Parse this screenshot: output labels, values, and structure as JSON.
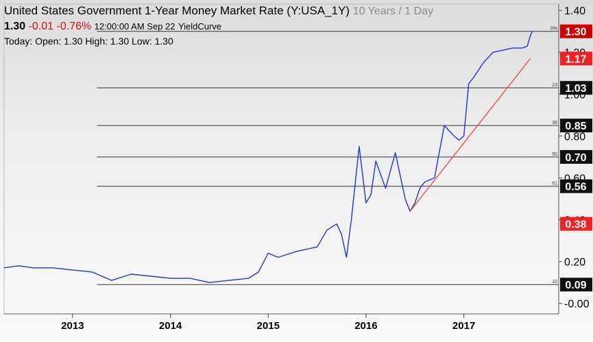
{
  "header": {
    "title": "United States Government 1-Year Money Market Rate (Y:USA_1Y)",
    "period": "10 Years / 1 Day",
    "last": "1.30",
    "change": "-0.01",
    "change_pct": "-0.76%",
    "timestamp": "12:00:00 AM Sep 22",
    "source": "YieldCurve",
    "today_label": "Today:",
    "open_label": "Open:",
    "open": "1.30",
    "high_label": "High:",
    "high": "1.30",
    "low_label": "Low:",
    "low": "1.30"
  },
  "chart_data": {
    "type": "line",
    "x_ticks": [
      2013,
      2014,
      2015,
      2016,
      2017
    ],
    "y_ticks": [
      "-0.00",
      "0.20",
      "0.40",
      "0.60",
      "0.80",
      "1.00",
      "1.20",
      "1.40"
    ],
    "xlim": [
      2012.3,
      2017.97
    ],
    "ylim": [
      -0.05,
      1.43
    ],
    "series": [
      {
        "color": "#2233cc",
        "x": [
          2012.3,
          2012.45,
          2012.6,
          2012.8,
          2013.0,
          2013.2,
          2013.4,
          2013.6,
          2013.8,
          2014.0,
          2014.2,
          2014.4,
          2014.6,
          2014.8,
          2014.9,
          2015.0,
          2015.1,
          2015.3,
          2015.5,
          2015.6,
          2015.7,
          2015.75,
          2015.8,
          2015.85,
          2015.93,
          2016.0,
          2016.05,
          2016.1,
          2016.2,
          2016.3,
          2016.4,
          2016.45,
          2016.5,
          2016.55,
          2016.6,
          2016.7,
          2016.8,
          2016.9,
          2016.95,
          2017.0,
          2017.05,
          2017.1,
          2017.2,
          2017.3,
          2017.4,
          2017.5,
          2017.6,
          2017.65,
          2017.68,
          2017.7
        ],
        "values": [
          0.17,
          0.18,
          0.17,
          0.17,
          0.16,
          0.15,
          0.11,
          0.14,
          0.13,
          0.12,
          0.12,
          0.1,
          0.11,
          0.12,
          0.15,
          0.24,
          0.22,
          0.25,
          0.27,
          0.35,
          0.38,
          0.33,
          0.22,
          0.4,
          0.75,
          0.48,
          0.52,
          0.68,
          0.55,
          0.72,
          0.5,
          0.44,
          0.48,
          0.55,
          0.58,
          0.6,
          0.85,
          0.8,
          0.78,
          0.8,
          1.05,
          1.08,
          1.15,
          1.2,
          1.21,
          1.22,
          1.22,
          1.23,
          1.28,
          1.3
        ]
      }
    ],
    "trendline": {
      "color": "#ee4444",
      "x": [
        2016.45,
        2017.68
      ],
      "y": [
        0.44,
        1.17
      ]
    },
    "fib_levels": [
      {
        "value": 1.3,
        "label": "1.30",
        "tag": "0%",
        "badge_color": "#cc0000"
      },
      {
        "value": 1.17,
        "label": "1.17",
        "tag": "",
        "badge_color": "#ee2222"
      },
      {
        "value": 1.03,
        "label": "1.03",
        "tag": "23",
        "badge_color": "#111111"
      },
      {
        "value": 0.85,
        "label": "0.85",
        "tag": "38",
        "badge_color": "#111111"
      },
      {
        "value": 0.7,
        "label": "0.70",
        "tag": "50",
        "badge_color": "#111111"
      },
      {
        "value": 0.56,
        "label": "0.56",
        "tag": "61",
        "badge_color": "#111111"
      },
      {
        "value": 0.38,
        "label": "0.38",
        "tag": "",
        "badge_color": "#ee2222"
      },
      {
        "value": 0.09,
        "label": "0.09",
        "tag": "10",
        "badge_color": "#111111"
      }
    ]
  }
}
